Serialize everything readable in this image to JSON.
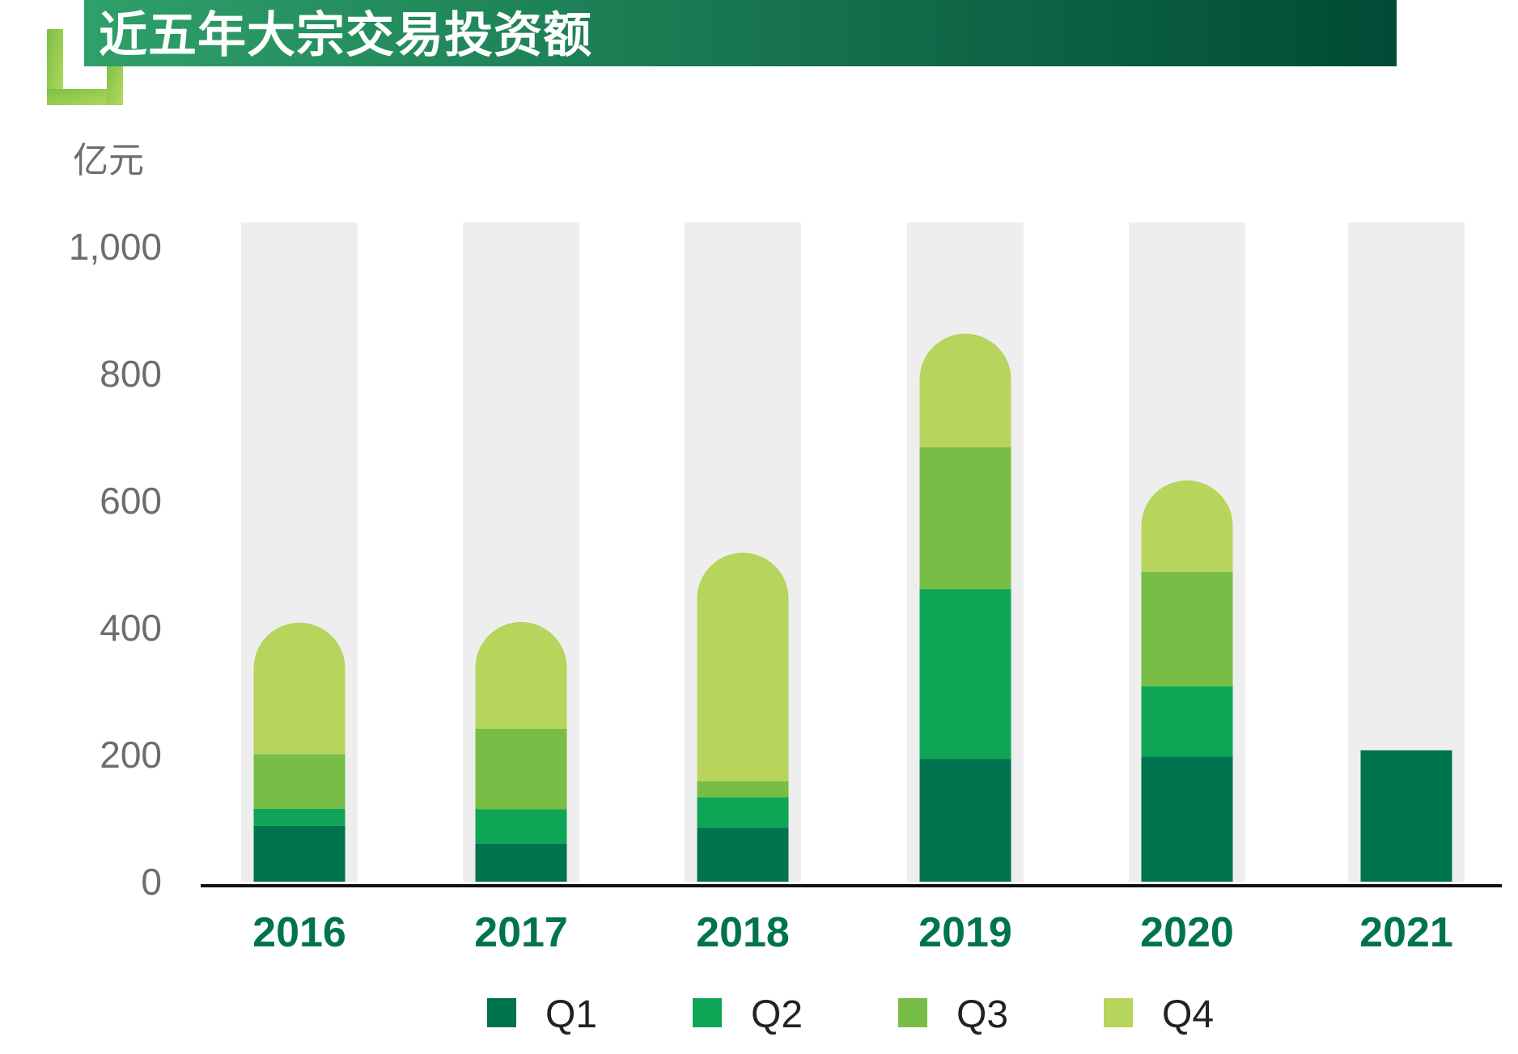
{
  "header": {
    "title": "近五年大宗交易投资额"
  },
  "colors": {
    "title_bar_start": "#2fa06a",
    "title_bar_end": "#004b35",
    "corner_bracket_start": "#78c043",
    "corner_bracket_end": "#b9d862",
    "column_background": "#eeeeee",
    "axis": "#111111",
    "q1": "#00734f",
    "q2": "#0ea556",
    "q3": "#78be46",
    "q4": "#b7d45c",
    "year_label": "#00734f",
    "tick_label": "#6d6d6d"
  },
  "chart_data": {
    "type": "bar",
    "stacked": true,
    "title": "近五年大宗交易投资额",
    "unit": "亿元",
    "xlabel": "",
    "ylabel": "亿元",
    "ylim": [
      0,
      1000
    ],
    "yticks": [
      0,
      200,
      400,
      600,
      800,
      1000
    ],
    "ytick_labels": [
      "0",
      "200",
      "400",
      "600",
      "800",
      "1,000"
    ],
    "categories": [
      "2016",
      "2017",
      "2018",
      "2019",
      "2020",
      "2021"
    ],
    "series": [
      {
        "name": "Q1",
        "color": "#00734f",
        "values": [
          88,
          60,
          85,
          193,
          197,
          207
        ]
      },
      {
        "name": "Q2",
        "color": "#0ea556",
        "values": [
          27,
          54,
          48,
          268,
          111,
          0
        ]
      },
      {
        "name": "Q3",
        "color": "#78be46",
        "values": [
          86,
          127,
          25,
          223,
          180,
          0
        ]
      },
      {
        "name": "Q4",
        "color": "#b7d45c",
        "values": [
          207,
          168,
          360,
          179,
          144,
          0
        ]
      }
    ],
    "grid": false,
    "legend_position": "bottom"
  }
}
